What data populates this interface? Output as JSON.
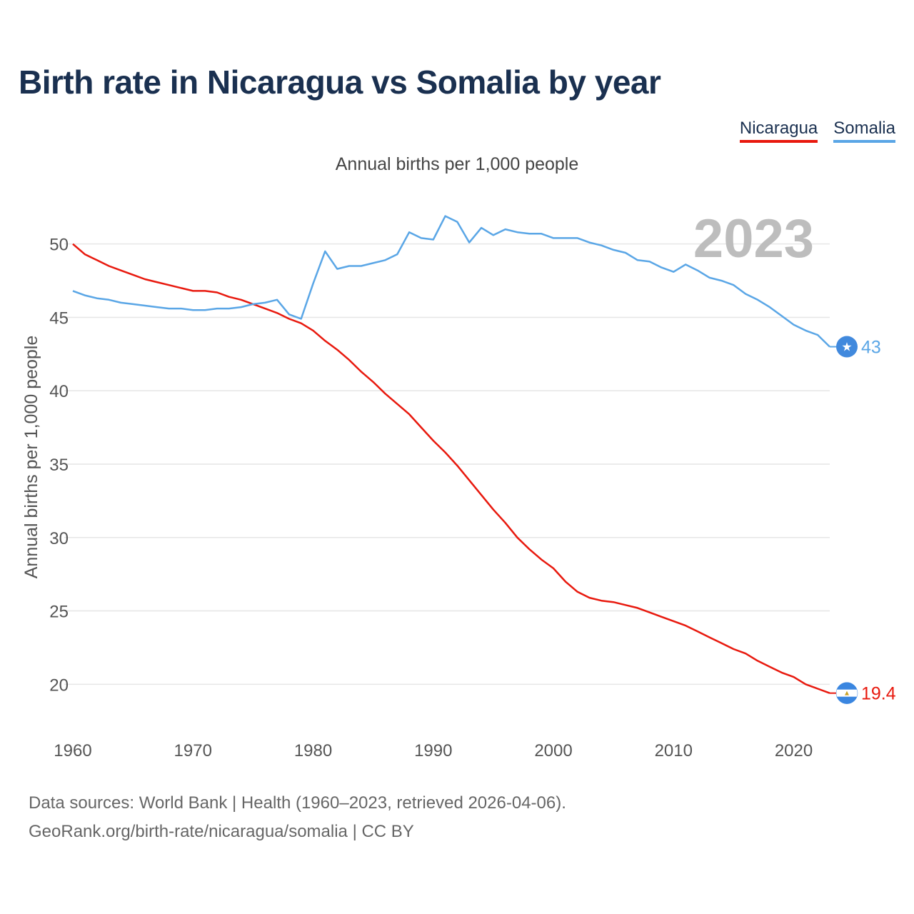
{
  "title": "Birth rate in Nicaragua vs Somalia by year",
  "subtitle": "Annual births per 1,000 people",
  "year_label": "2023",
  "legend": [
    {
      "name": "Nicaragua",
      "color": "#e8190e"
    },
    {
      "name": "Somalia",
      "color": "#5aa6e6"
    }
  ],
  "footer": {
    "sources": "Data sources: World Bank | Health (1960–2023, retrieved 2026-04-06).",
    "url": "GeoRank.org/birth-rate/nicaragua/somalia | CC BY"
  },
  "chart_data": {
    "type": "line",
    "title": "Birth rate in Nicaragua vs Somalia by year",
    "subtitle": "Annual births per 1,000 people",
    "xlabel": "",
    "ylabel": "Annual births per 1,000 people",
    "xlim": [
      1960,
      2023
    ],
    "ylim": [
      17,
      53
    ],
    "xticks": [
      1960,
      1970,
      1980,
      1990,
      2000,
      2010,
      2020
    ],
    "yticks": [
      20,
      25,
      30,
      35,
      40,
      45,
      50
    ],
    "grid": true,
    "legend_position": "top-right",
    "x": [
      1960,
      1961,
      1962,
      1963,
      1964,
      1965,
      1966,
      1967,
      1968,
      1969,
      1970,
      1971,
      1972,
      1973,
      1974,
      1975,
      1976,
      1977,
      1978,
      1979,
      1980,
      1981,
      1982,
      1983,
      1984,
      1985,
      1986,
      1987,
      1988,
      1989,
      1990,
      1991,
      1992,
      1993,
      1994,
      1995,
      1996,
      1997,
      1998,
      1999,
      2000,
      2001,
      2002,
      2003,
      2004,
      2005,
      2006,
      2007,
      2008,
      2009,
      2010,
      2011,
      2012,
      2013,
      2014,
      2015,
      2016,
      2017,
      2018,
      2019,
      2020,
      2021,
      2022,
      2023
    ],
    "series": [
      {
        "name": "Nicaragua",
        "color": "#e8190e",
        "end_label": "19.4",
        "values": [
          50.0,
          49.3,
          48.9,
          48.5,
          48.2,
          47.9,
          47.6,
          47.4,
          47.2,
          47.0,
          46.8,
          46.8,
          46.7,
          46.4,
          46.2,
          45.9,
          45.6,
          45.3,
          44.9,
          44.6,
          44.1,
          43.4,
          42.8,
          42.1,
          41.3,
          40.6,
          39.8,
          39.1,
          38.4,
          37.5,
          36.6,
          35.8,
          34.9,
          33.9,
          32.9,
          31.9,
          31.0,
          30.0,
          29.2,
          28.5,
          27.9,
          27.0,
          26.3,
          25.9,
          25.7,
          25.6,
          25.4,
          25.2,
          24.9,
          24.6,
          24.3,
          24.0,
          23.6,
          23.2,
          22.8,
          22.4,
          22.1,
          21.6,
          21.2,
          20.8,
          20.5,
          20.0,
          19.7,
          19.4
        ]
      },
      {
        "name": "Somalia",
        "color": "#5aa6e6",
        "end_label": "43",
        "values": [
          46.8,
          46.5,
          46.3,
          46.2,
          46.0,
          45.9,
          45.8,
          45.7,
          45.6,
          45.6,
          45.5,
          45.5,
          45.6,
          45.6,
          45.7,
          45.9,
          46.0,
          46.2,
          45.2,
          44.9,
          47.3,
          49.5,
          48.3,
          48.5,
          48.5,
          48.7,
          48.9,
          49.3,
          50.8,
          50.4,
          50.3,
          51.9,
          51.5,
          50.1,
          51.1,
          50.6,
          51.0,
          50.8,
          50.7,
          50.7,
          50.4,
          50.4,
          50.4,
          50.1,
          49.9,
          49.6,
          49.4,
          48.9,
          48.8,
          48.4,
          48.1,
          48.6,
          48.2,
          47.7,
          47.5,
          47.2,
          46.6,
          46.2,
          45.7,
          45.1,
          44.5,
          44.1,
          43.8,
          43.0
        ]
      }
    ]
  }
}
